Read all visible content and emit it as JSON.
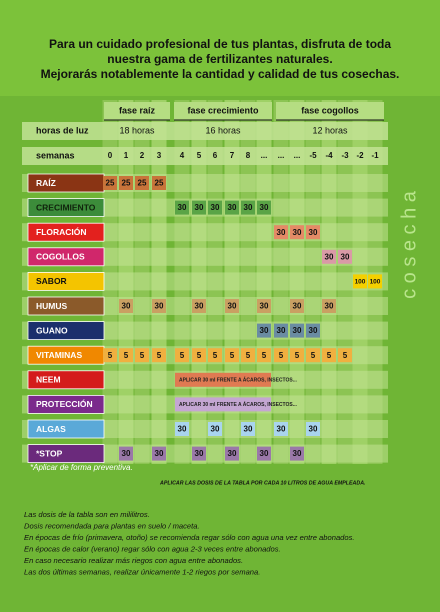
{
  "header": {
    "lines": [
      "Para un cuidado profesional de tus plantas, disfruta de toda",
      "nuestra gama de fertilizantes naturales.",
      "Mejorarás notablemente la cantidad y calidad de tus cosechas."
    ]
  },
  "table": {
    "light_label": "horas de luz",
    "weeks_label": "semanas",
    "phases": [
      {
        "name": "fase raíz",
        "hours": "18 horas"
      },
      {
        "name": "fase crecimiento",
        "hours": "16 horas"
      },
      {
        "name": "fase cogollos",
        "hours": "12 horas"
      }
    ],
    "weeks": [
      "0",
      "1",
      "2",
      "3",
      "4",
      "5",
      "6",
      "7",
      "8",
      "...",
      "...",
      "...",
      "-5",
      "-4",
      "-3",
      "-2",
      "-1"
    ],
    "side_label": "c o s e c h a",
    "rows": [
      {
        "label": "RAÍZ",
        "label_color": "#8a3414",
        "text_color": "#ffffff",
        "cell_color": "#c8743a",
        "cells": [
          25,
          25,
          25,
          25,
          null,
          null,
          null,
          null,
          null,
          null,
          null,
          null,
          null,
          null,
          null,
          null,
          null
        ]
      },
      {
        "label": "CRECIMIENTO",
        "label_color": "#3c8c3a",
        "text_color": "#10240c",
        "cell_color": "#5aa446",
        "cells": [
          null,
          null,
          null,
          null,
          30,
          30,
          30,
          30,
          30,
          30,
          null,
          null,
          null,
          null,
          null,
          null,
          null
        ]
      },
      {
        "label": "FLORACIÓN",
        "label_color": "#e3211e",
        "text_color": "#ffffff",
        "cell_color": "#e48a66",
        "cells": [
          null,
          null,
          null,
          null,
          null,
          null,
          null,
          null,
          null,
          null,
          30,
          30,
          30,
          null,
          null,
          null,
          null
        ]
      },
      {
        "label": "COGOLLOS",
        "label_color": "#d0276b",
        "text_color": "#ffffff",
        "cell_color": "#d99aa6",
        "cells": [
          null,
          null,
          null,
          null,
          null,
          null,
          null,
          null,
          null,
          null,
          null,
          null,
          null,
          30,
          30,
          null,
          null
        ]
      },
      {
        "label": "SABOR",
        "label_color": "#f4c400",
        "text_color": "#111111",
        "cell_color": "#f4d000",
        "cells": [
          null,
          null,
          null,
          null,
          null,
          null,
          null,
          null,
          null,
          null,
          null,
          null,
          null,
          null,
          null,
          100,
          100
        ]
      },
      {
        "label": "HUMUS",
        "label_color": "#8b5a2a",
        "text_color": "#ffffff",
        "cell_color": "#c9a062",
        "cells": [
          null,
          30,
          null,
          30,
          null,
          30,
          null,
          30,
          null,
          30,
          null,
          30,
          null,
          30,
          null,
          null,
          null
        ]
      },
      {
        "label": "GUANO",
        "label_color": "#1b2f6c",
        "text_color": "#ffffff",
        "cell_color": "#6a8ca2",
        "cells": [
          null,
          null,
          null,
          null,
          null,
          null,
          null,
          null,
          null,
          30,
          30,
          30,
          30,
          null,
          null,
          null,
          null
        ]
      },
      {
        "label": "VITAMINAS",
        "label_color": "#f08800",
        "text_color": "#ffffff",
        "cell_color": "#f0b040",
        "cells": [
          5,
          5,
          5,
          5,
          5,
          5,
          5,
          5,
          5,
          5,
          5,
          5,
          5,
          5,
          5,
          null,
          null
        ]
      },
      {
        "label": "NEEM",
        "label_color": "#d41b1b",
        "text_color": "#ffffff",
        "cell_color": "#e07a52",
        "banner": "APLICAR 30 ml FRENTE A ÁCAROS, INSECTOS..."
      },
      {
        "label": "PROTECCIÓN",
        "label_color": "#7b2a8c",
        "text_color": "#ffffff",
        "cell_color": "#c4a6d2",
        "banner": "APLICAR 30 ml FRENTE A ÁCAROS, INSECTOS..."
      },
      {
        "label": "ALGAS",
        "label_color": "#5aa9d8",
        "text_color": "#ffffff",
        "cell_color": "#a9d4ee",
        "cells": [
          null,
          null,
          null,
          null,
          30,
          null,
          30,
          null,
          30,
          null,
          30,
          null,
          30,
          null,
          null,
          null,
          null
        ]
      },
      {
        "label": "*STOP",
        "label_color": "#6b2a7c",
        "text_color": "#ffffff",
        "cell_color": "#9a78a8",
        "cells": [
          null,
          30,
          null,
          30,
          null,
          30,
          null,
          30,
          null,
          30,
          null,
          30,
          null,
          null,
          null,
          null,
          null
        ]
      }
    ]
  },
  "footnote": "*Aplicar de forma preventiva.",
  "dose_note": "APLICAR LAS DOSIS DE LA TABLA POR CADA 10 LITROS DE AGUA EMPLEADA.",
  "notes": [
    "Las dosis de la tabla son en mililitros.",
    "Dosis recomendada para plantas en suelo / maceta.",
    "En épocas de frío (primavera, otoño) se recomienda regar sólo con agua una vez entre abonados.",
    "En épocas de calor (verano) regar sólo con agua 2-3 veces entre abonados.",
    "En caso necesario realizar más riegos con agua entre abonados.",
    "Las dos últimas semanas, realizar únicamente 1-2 riegos por semana."
  ]
}
